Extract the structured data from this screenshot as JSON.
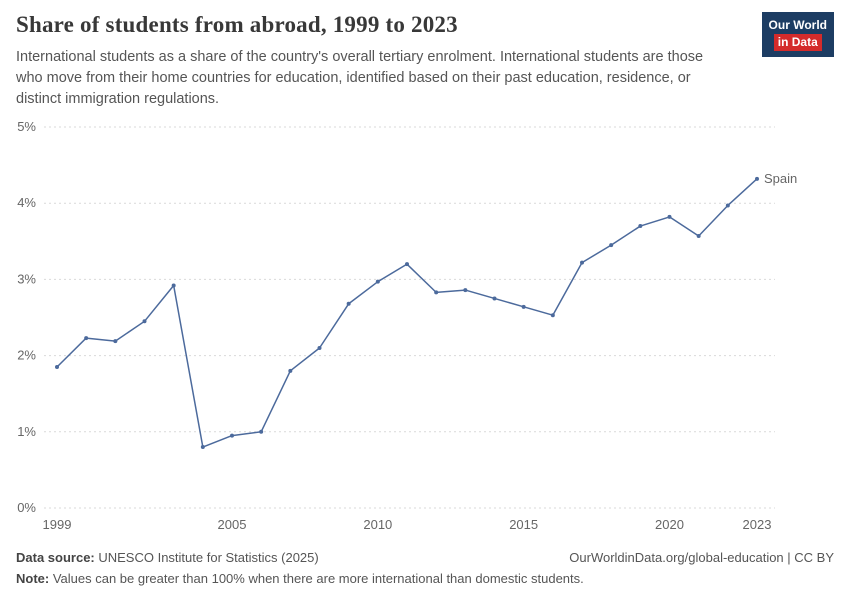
{
  "header": {
    "title": "Share of students from abroad, 1999 to 2023",
    "subtitle": "International students as a share of the country's overall tertiary enrolment. International students are those who move from their home countries for education, identified based on their past education, residence, or distinct immigration regulations.",
    "logo": {
      "line1": "Our World",
      "line2": "in Data"
    }
  },
  "colors": {
    "series_line": "#4c6a9c",
    "logo_background": "#1d3d63",
    "logo_accent": "#d42b2b",
    "grid_line": "#d9d9d9",
    "axis_text": "#666666"
  },
  "chart_data": {
    "type": "line",
    "title": "Share of students from abroad, 1999 to 2023",
    "x": [
      1999,
      2000,
      2001,
      2002,
      2003,
      2004,
      2005,
      2006,
      2007,
      2008,
      2009,
      2010,
      2011,
      2012,
      2013,
      2014,
      2015,
      2016,
      2017,
      2018,
      2019,
      2020,
      2021,
      2022,
      2023
    ],
    "series": [
      {
        "name": "Spain",
        "color": "#4c6a9c",
        "values": [
          1.85,
          2.23,
          2.19,
          2.45,
          2.92,
          0.8,
          0.95,
          1.0,
          1.8,
          2.1,
          2.68,
          2.97,
          3.2,
          2.83,
          2.86,
          2.75,
          2.64,
          2.53,
          3.22,
          3.45,
          3.7,
          3.82,
          3.57,
          3.97,
          4.32
        ]
      }
    ],
    "ylim": [
      0,
      5
    ],
    "yticks": [
      0,
      1,
      2,
      3,
      4,
      5
    ],
    "ytick_suffix": "%",
    "xticks": [
      1999,
      2005,
      2010,
      2015,
      2020,
      2023
    ],
    "grid": "horizontal-dashed",
    "legend": "end-of-line-label"
  },
  "footer": {
    "source_label": "Data source:",
    "source_text": " UNESCO Institute for Statistics (2025)",
    "link_text": "OurWorldinData.org/global-education | CC BY",
    "note_label": "Note:",
    "note_text": " Values can be greater than 100% when there are more international than domestic students."
  }
}
